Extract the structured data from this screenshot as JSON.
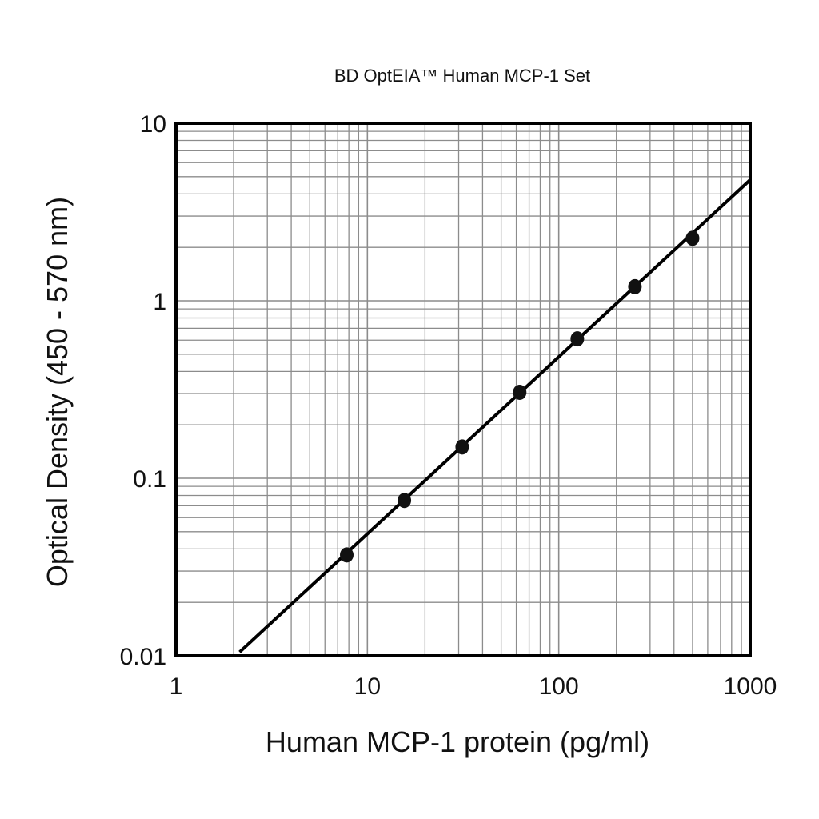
{
  "chart_data": {
    "type": "scatter",
    "title": "BD  OptEIA™  Human  MCP-1 Set",
    "xlabel": "Human MCP-1 protein (pg/ml)",
    "ylabel": "Optical Density (450 - 570 nm)",
    "x_scale": "log",
    "y_scale": "log",
    "xlim": [
      1,
      1000
    ],
    "ylim": [
      0.01,
      10
    ],
    "x_ticks": [
      1,
      10,
      100,
      1000
    ],
    "x_tick_labels": [
      "1",
      "10",
      "100",
      "1000"
    ],
    "y_ticks": [
      0.01,
      0.1,
      1,
      10
    ],
    "y_tick_labels": [
      "0.01",
      "0.1",
      "1",
      "10"
    ],
    "grid": true,
    "series": [
      {
        "x": [
          7.8,
          15.6,
          31.3,
          62.5,
          125,
          250,
          500
        ],
        "y": [
          0.037,
          0.075,
          0.15,
          0.305,
          0.61,
          1.2,
          2.25
        ]
      }
    ],
    "fit_line": {
      "x": [
        2.15,
        1000
      ],
      "y": [
        0.0105,
        4.8
      ]
    }
  }
}
